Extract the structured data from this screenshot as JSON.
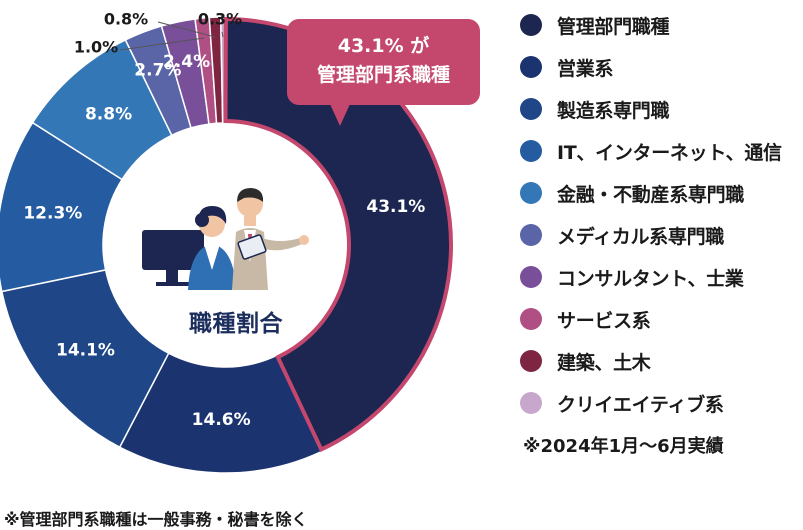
{
  "chart_data": {
    "type": "pie",
    "title": "",
    "center_label": "職種割合",
    "categories": [
      "管理部門職種",
      "営業系",
      "製造系専門職",
      "IT、インターネット、通信",
      "金融・不動産系専門職",
      "メディカル系専門職",
      "コンサルタント、士業",
      "サービス系",
      "建築、土木",
      "クリイエイティブ系"
    ],
    "values": [
      43.1,
      14.6,
      14.1,
      12.3,
      8.8,
      2.7,
      2.4,
      1.0,
      0.8,
      0.3
    ],
    "value_labels": [
      "43.1%",
      "14.6%",
      "14.1%",
      "12.3%",
      "8.8%",
      "2.7%",
      "2.4%",
      "1.0%",
      "0.8%",
      "0.3%"
    ],
    "colors": [
      "#1c2650",
      "#1b3470",
      "#1f4687",
      "#255ba0",
      "#3477b6",
      "#5a65a8",
      "#7a4f9a",
      "#b04f83",
      "#7d2541",
      "#c7a8cc"
    ],
    "highlight_border": "#c4476d",
    "legend_position": "right"
  },
  "callout": {
    "line1": "43.1% が",
    "line2": "管理部門系職種"
  },
  "notes": {
    "period": "※2024年1月～6月実績",
    "footnote": "※管理部門系職種は一般事務・秘書を除く"
  }
}
